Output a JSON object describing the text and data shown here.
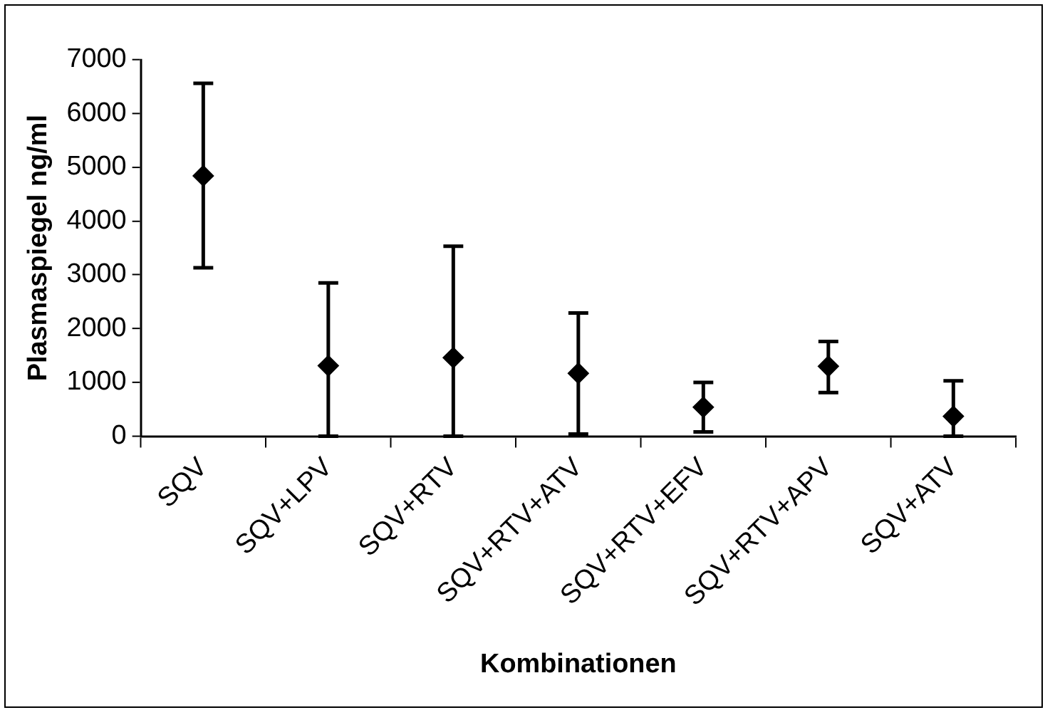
{
  "chart_data": {
    "type": "scatter",
    "categories": [
      "SQV",
      "SQV+LPV",
      "SQV+RTV",
      "SQV+RTV+ATV",
      "SQV+RTV+EFV",
      "SQV+RTV+APV",
      "SQV+ATV"
    ],
    "series": [
      {
        "color": "#000000",
        "values": [
          4840,
          1310,
          1460,
          1170,
          540,
          1300,
          370
        ],
        "errors": [
          [
            3130,
            6560
          ],
          [
            0,
            2850
          ],
          [
            0,
            3530
          ],
          [
            40,
            2290
          ],
          [
            80,
            1000
          ],
          [
            810,
            1760
          ],
          [
            0,
            1030
          ]
        ]
      }
    ],
    "xlabel": "Kombinationen",
    "ylabel": "Plasmaspiegel ng/ml",
    "ylim": [
      0,
      7000
    ],
    "yticks": [
      0,
      1000,
      2000,
      3000,
      4000,
      5000,
      6000,
      7000
    ],
    "marker": "diamond",
    "grid": false,
    "legend": false
  }
}
